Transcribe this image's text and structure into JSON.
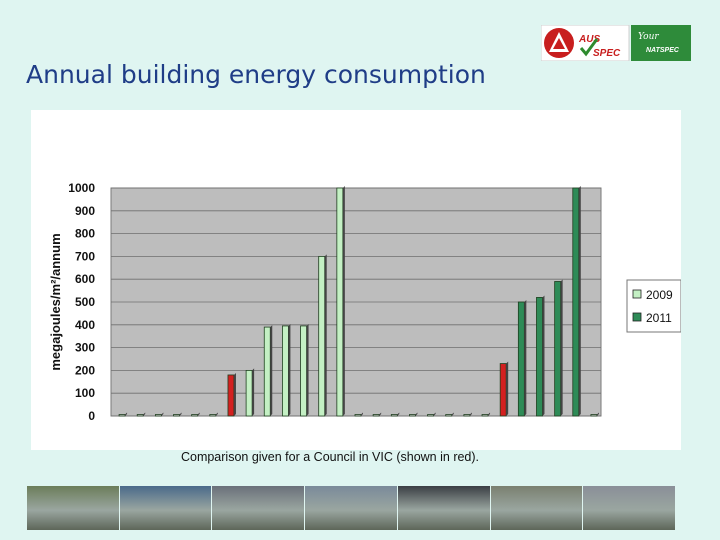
{
  "slide": {
    "title": "Annual building energy consumption",
    "caption": "Comparison given for a Council in VIC (shown in red)."
  },
  "logos": [
    {
      "name": "aus-spec-logo",
      "text_main": "AUS",
      "text_sub": "SPEC"
    },
    {
      "name": "natspec-logo",
      "text_main": "NATSPEC",
      "text_sub": "Your"
    }
  ],
  "chart_data": {
    "type": "bar",
    "ylabel": "megajoules/m²/annum",
    "ylim": [
      0,
      1000
    ],
    "yticks": [
      0,
      100,
      200,
      300,
      400,
      500,
      600,
      700,
      800,
      900,
      1000
    ],
    "grid": true,
    "legend_position": "right",
    "series": [
      {
        "name": "2009",
        "color": "#c4f0c4",
        "values": [
          0,
          0,
          0,
          0,
          0,
          0,
          180,
          200,
          390,
          395,
          395,
          700,
          1000,
          0,
          0,
          0,
          0,
          0,
          0,
          0,
          0,
          0,
          0,
          0,
          0,
          0,
          0
        ]
      },
      {
        "name": "2011",
        "color": "#2e8b57",
        "values": [
          0,
          0,
          0,
          0,
          0,
          0,
          0,
          0,
          0,
          0,
          0,
          0,
          0,
          0,
          0,
          0,
          0,
          0,
          0,
          0,
          0,
          230,
          500,
          520,
          590,
          1000,
          0
        ]
      }
    ],
    "highlight": {
      "color": "#d32020",
      "label": "Council in VIC",
      "positions": [
        6,
        21
      ]
    }
  },
  "photos": [
    {
      "name": "suburban-road-photo",
      "color": "#6b7d5a"
    },
    {
      "name": "green-roof-photo",
      "color": "#4a6a8a"
    },
    {
      "name": "city-aerial-photo",
      "color": "#6a707a"
    },
    {
      "name": "waterfront-photo",
      "color": "#7a8a9a"
    },
    {
      "name": "night-road-photo",
      "color": "#3a3e44"
    },
    {
      "name": "street-trees-photo",
      "color": "#7a8070"
    },
    {
      "name": "city-towers-photo",
      "color": "#8a8f98"
    }
  ]
}
